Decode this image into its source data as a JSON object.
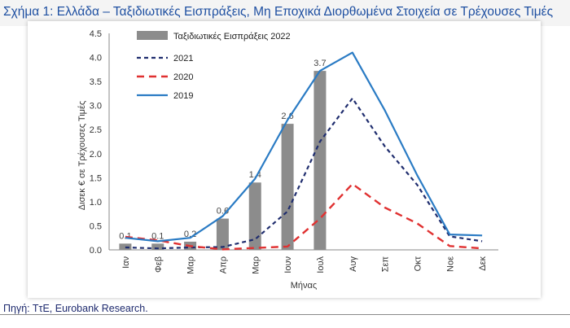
{
  "figure": {
    "title": "Σχήμα 1: Ελλάδα – Ταξιδιωτικές Εισπράξεις, Μη Εποχικά Διορθωμένα Στοιχεία σε Τρέχουσες Τιμές",
    "source": "Πηγή: ΤτΕ, Eurobank Research."
  },
  "colors": {
    "bars": "#8c8c8c",
    "series_2021": "#1f2d6e",
    "series_2020": "#e03131",
    "series_2019": "#2a7bc4",
    "title": "#1e4fa1"
  },
  "chart_data": {
    "type": "bar+line",
    "title": "",
    "xlabel": "Μήνας",
    "ylabel": "Δισεκ € σε Τρέχουσες Τιμές",
    "ylim": [
      0,
      4.5
    ],
    "yticks": [
      "0.0",
      "0.5",
      "1.0",
      "1.5",
      "2.0",
      "2.5",
      "3.0",
      "3.5",
      "4.0",
      "4.5"
    ],
    "categories": [
      "Ιαν",
      "Φεβ",
      "Μαρ",
      "Απρ",
      "Μαρ",
      "Ιουν",
      "Ιουλ",
      "Αυγ",
      "Σεπ",
      "Οκτ",
      "Νοε",
      "Δεκ"
    ],
    "grid": false,
    "legend_position": "top-left",
    "bars": {
      "name": "Ταξιδιωτικές Εισπράξεις 2022",
      "values": [
        0.13,
        0.13,
        0.17,
        0.65,
        1.4,
        2.62,
        3.72
      ],
      "labels": [
        "0.1",
        "0.1",
        "0.2",
        "0.6",
        "1.4",
        "2.6",
        "3.7"
      ]
    },
    "series": [
      {
        "name": "2021",
        "style": "dashed",
        "values": [
          0.05,
          0.03,
          0.05,
          0.06,
          0.22,
          0.8,
          2.25,
          3.15,
          2.15,
          1.35,
          0.28,
          0.18
        ]
      },
      {
        "name": "2020",
        "style": "dashed",
        "values": [
          0.27,
          0.2,
          0.08,
          0.01,
          0.04,
          0.07,
          0.65,
          1.37,
          0.88,
          0.55,
          0.08,
          0.03
        ]
      },
      {
        "name": "2019",
        "style": "solid",
        "values": [
          0.25,
          0.18,
          0.25,
          0.7,
          1.48,
          2.7,
          3.72,
          4.1,
          2.9,
          1.55,
          0.32,
          0.3
        ]
      }
    ]
  }
}
